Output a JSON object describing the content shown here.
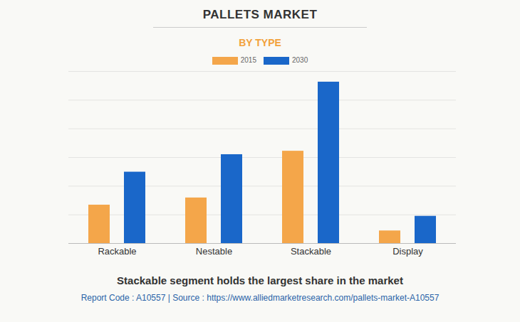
{
  "chart_data": {
    "type": "bar",
    "title": "PALLETS MARKET",
    "subtitle": "BY TYPE",
    "categories": [
      "Rackable",
      "Nestable",
      "Stackable",
      "Display"
    ],
    "series": [
      {
        "name": "2015",
        "color": "#f4a64a",
        "values": [
          1.34,
          1.59,
          3.22,
          0.44
        ]
      },
      {
        "name": "2030",
        "color": "#1a67c9",
        "values": [
          2.49,
          3.1,
          5.63,
          0.95
        ]
      }
    ],
    "ylim": [
      0,
      6
    ],
    "yticks": [
      0,
      1,
      2,
      3,
      4,
      5,
      6
    ],
    "grid": true,
    "tick_labels": "x",
    "legend": "top",
    "caption": "Stackable segment holds the largest share in the market",
    "source": "Report Code : A10557  |  Source : https://www.alliedmarketresearch.com/pallets-market-A10557"
  }
}
